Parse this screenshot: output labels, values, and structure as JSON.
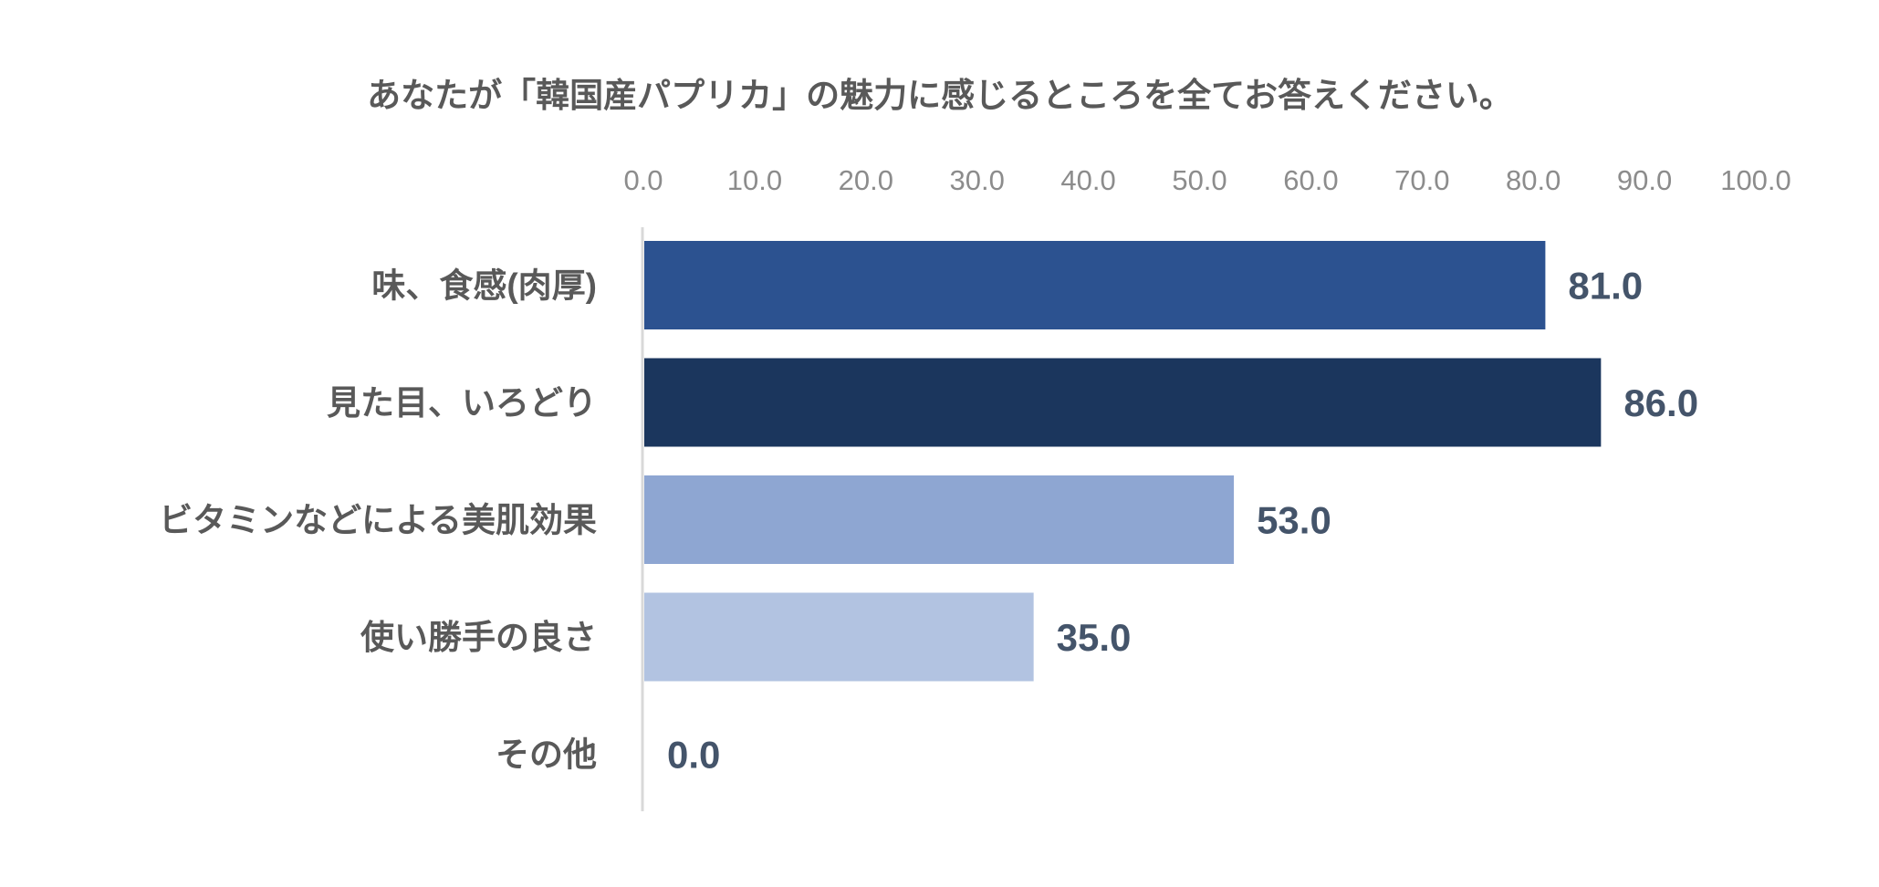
{
  "chart_data": {
    "type": "bar",
    "orientation": "horizontal",
    "title": "あなたが「韓国産パプリカ」の魅力に感じるところを全てお答えください。",
    "categories": [
      "味、食感(肉厚)",
      "見た目、いろどり",
      "ビタミンなどによる美肌効果",
      "使い勝手の良さ",
      "その他"
    ],
    "values": [
      81.0,
      86.0,
      53.0,
      35.0,
      0.0
    ],
    "value_labels": [
      "81.0",
      "86.0",
      "53.0",
      "35.0",
      "0.0"
    ],
    "colors": [
      "#2c5290",
      "#1b365d",
      "#8ea6d2",
      "#b2c3e1",
      "#b2c3e1"
    ],
    "xlim": [
      0,
      100
    ],
    "x_ticks": [
      "0.0",
      "10.0",
      "20.0",
      "30.0",
      "40.0",
      "50.0",
      "60.0",
      "70.0",
      "80.0",
      "90.0",
      "100.0"
    ],
    "x_axis_position": "top",
    "grid": false,
    "xlabel": "",
    "ylabel": ""
  }
}
